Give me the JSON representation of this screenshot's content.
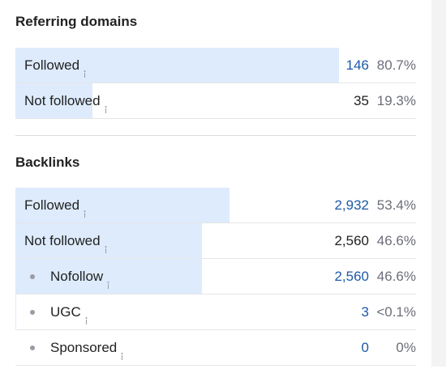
{
  "sections": [
    {
      "title": "Referring domains",
      "rows": [
        {
          "label": "Followed",
          "count": "146",
          "share": {
            "value": 80.7,
            "label": "80.7%"
          },
          "link": true,
          "sub": false
        },
        {
          "label": "Not followed",
          "count": "35",
          "share": {
            "value": 19.3,
            "label": "19.3%"
          },
          "link": false,
          "sub": false
        }
      ]
    },
    {
      "title": "Backlinks",
      "rows": [
        {
          "label": "Followed",
          "count": "2,932",
          "share": {
            "value": 53.4,
            "label": "53.4%"
          },
          "link": true,
          "sub": false
        },
        {
          "label": "Not followed",
          "count": "2,560",
          "share": {
            "value": 46.6,
            "label": "46.6%"
          },
          "link": false,
          "sub": false
        },
        {
          "label": "Nofollow",
          "count": "2,560",
          "share": {
            "value": 46.6,
            "label": "46.6%"
          },
          "link": true,
          "sub": true
        },
        {
          "label": "UGC",
          "count": "3",
          "share": {
            "value": 0.1,
            "label": "<0.1%"
          },
          "link": true,
          "sub": true
        },
        {
          "label": "Sponsored",
          "count": "0",
          "share": {
            "value": 0,
            "label": "0%"
          },
          "link": true,
          "sub": true
        }
      ]
    }
  ]
}
